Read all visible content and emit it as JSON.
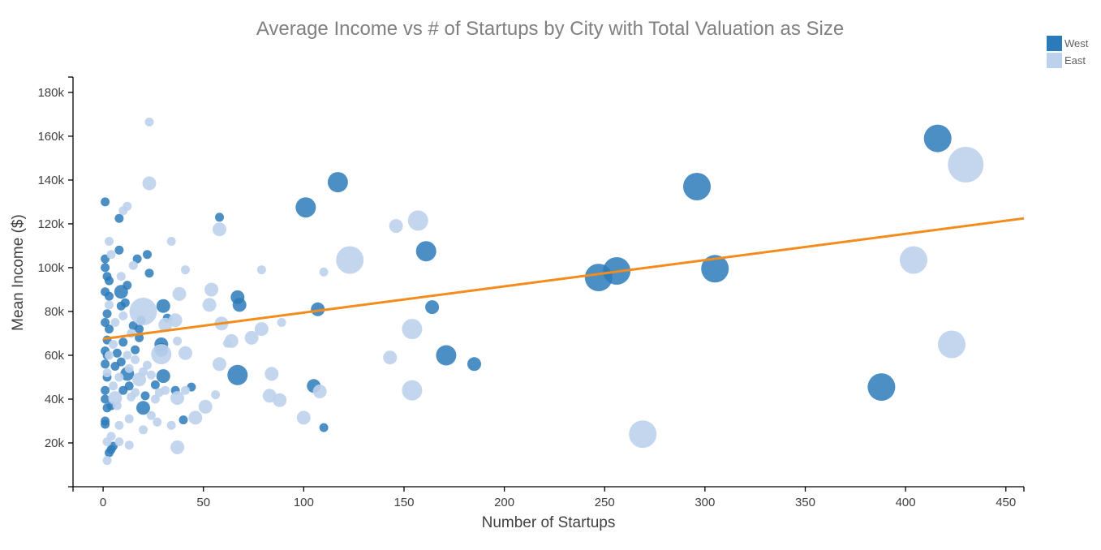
{
  "chart_data": {
    "type": "scatter",
    "title": "Average Income  vs # of Startups by City with Total Valuation as Size",
    "xlabel": "Number of Startups",
    "ylabel": "Mean Income ($)",
    "xlim": [
      -15,
      459
    ],
    "ylim": [
      0,
      187000
    ],
    "x_ticks": [
      0,
      50,
      100,
      150,
      200,
      250,
      300,
      350,
      400,
      450
    ],
    "y_ticks": [
      20000,
      40000,
      60000,
      80000,
      100000,
      120000,
      140000,
      160000,
      180000
    ],
    "y_tick_labels": [
      "20k",
      "40k",
      "60k",
      "80k",
      "100k",
      "120k",
      "140k",
      "160k",
      "180k"
    ],
    "grid": false,
    "legend_position": "top-right",
    "series": [
      {
        "name": "West",
        "color": "#2b7bba",
        "points": [
          [
            1,
            130000,
            "s"
          ],
          [
            1,
            104000,
            "s"
          ],
          [
            1,
            100000,
            "s"
          ],
          [
            2,
            96000,
            "s"
          ],
          [
            3,
            94000,
            "s"
          ],
          [
            1,
            89000,
            "s"
          ],
          [
            3,
            87000,
            "s"
          ],
          [
            2,
            79000,
            "s"
          ],
          [
            1,
            75000,
            "s"
          ],
          [
            3,
            72000,
            "s"
          ],
          [
            2,
            67000,
            "s"
          ],
          [
            1,
            62000,
            "s"
          ],
          [
            2,
            60000,
            "s"
          ],
          [
            1,
            56000,
            "s"
          ],
          [
            2,
            50000,
            "s"
          ],
          [
            1,
            44000,
            "s"
          ],
          [
            1,
            40000,
            "s"
          ],
          [
            2,
            36000,
            "s"
          ],
          [
            1,
            30000,
            "s"
          ],
          [
            1,
            28500,
            "s"
          ],
          [
            3,
            15500,
            "s"
          ],
          [
            4,
            17000,
            "s"
          ],
          [
            5,
            18500,
            "s"
          ],
          [
            4,
            37000,
            "s"
          ],
          [
            6,
            55000,
            "s"
          ],
          [
            7,
            61000,
            "s"
          ],
          [
            8,
            108000,
            "s"
          ],
          [
            8,
            122500,
            "s"
          ],
          [
            9,
            82500,
            "s"
          ],
          [
            9,
            57000,
            "s"
          ],
          [
            9,
            89000,
            "m"
          ],
          [
            10,
            66000,
            "s"
          ],
          [
            10,
            44000,
            "s"
          ],
          [
            11,
            84000,
            "s"
          ],
          [
            12,
            51500,
            "m"
          ],
          [
            12,
            92000,
            "s"
          ],
          [
            13,
            46000,
            "s"
          ],
          [
            15,
            73500,
            "s"
          ],
          [
            16,
            62500,
            "s"
          ],
          [
            17,
            104000,
            "s"
          ],
          [
            18,
            68000,
            "s"
          ],
          [
            18,
            72000,
            "s"
          ],
          [
            19,
            76000,
            "s"
          ],
          [
            20,
            36000,
            "m"
          ],
          [
            21,
            41500,
            "s"
          ],
          [
            22,
            106000,
            "s"
          ],
          [
            23,
            97500,
            "s"
          ],
          [
            26,
            46500,
            "s"
          ],
          [
            29,
            65000,
            "m"
          ],
          [
            29,
            62500,
            "m"
          ],
          [
            30,
            50500,
            "m"
          ],
          [
            30,
            82500,
            "m"
          ],
          [
            32,
            77000,
            "s"
          ],
          [
            36,
            44000,
            "s"
          ],
          [
            40,
            30500,
            "s"
          ],
          [
            44,
            45500,
            "s"
          ],
          [
            58,
            123000,
            "s"
          ],
          [
            67,
            86500,
            "m"
          ],
          [
            68,
            83000,
            "m"
          ],
          [
            67,
            51000,
            "l"
          ],
          [
            101,
            127500,
            "l"
          ],
          [
            105,
            46000,
            "m"
          ],
          [
            107,
            81000,
            "m"
          ],
          [
            110,
            27000,
            "s"
          ],
          [
            117,
            139000,
            "l"
          ],
          [
            161,
            107500,
            "l"
          ],
          [
            164,
            82000,
            "m"
          ],
          [
            171,
            60000,
            "l"
          ],
          [
            185,
            56000,
            "m"
          ],
          [
            247,
            95500,
            "x"
          ],
          [
            256,
            98500,
            "x"
          ],
          [
            296,
            137000,
            "x"
          ],
          [
            305,
            99500,
            "x"
          ],
          [
            388,
            45500,
            "x"
          ],
          [
            416,
            159000,
            "x"
          ]
        ]
      },
      {
        "name": "East",
        "color": "#bcd2ec",
        "points": [
          [
            23,
            166500,
            "s"
          ],
          [
            23,
            138500,
            "m"
          ],
          [
            12,
            128000,
            "s"
          ],
          [
            10,
            126000,
            "s"
          ],
          [
            3,
            112000,
            "s"
          ],
          [
            34,
            112000,
            "s"
          ],
          [
            4,
            106000,
            "s"
          ],
          [
            15,
            101000,
            "s"
          ],
          [
            9,
            96000,
            "s"
          ],
          [
            41,
            99000,
            "s"
          ],
          [
            79,
            99000,
            "s"
          ],
          [
            110,
            98000,
            "s"
          ],
          [
            58,
            117500,
            "m"
          ],
          [
            146,
            119000,
            "m"
          ],
          [
            157,
            121500,
            "l"
          ],
          [
            123,
            103500,
            "x"
          ],
          [
            20,
            80000,
            "x"
          ],
          [
            38,
            88000,
            "m"
          ],
          [
            54,
            90000,
            "m"
          ],
          [
            53,
            83000,
            "m"
          ],
          [
            59,
            74500,
            "m"
          ],
          [
            62,
            65500,
            "s"
          ],
          [
            64,
            66500,
            "m"
          ],
          [
            74,
            68000,
            "m"
          ],
          [
            79,
            72000,
            "m"
          ],
          [
            89,
            75000,
            "s"
          ],
          [
            31,
            74000,
            "m"
          ],
          [
            36,
            76000,
            "m"
          ],
          [
            37,
            66500,
            "s"
          ],
          [
            41,
            61000,
            "m"
          ],
          [
            29,
            60500,
            "l"
          ],
          [
            58,
            56000,
            "m"
          ],
          [
            2,
            52000,
            "s"
          ],
          [
            5,
            46000,
            "s"
          ],
          [
            6,
            40500,
            "m"
          ],
          [
            8,
            50000,
            "s"
          ],
          [
            13,
            54000,
            "s"
          ],
          [
            14,
            41000,
            "s"
          ],
          [
            16,
            43000,
            "s"
          ],
          [
            18,
            49000,
            "m"
          ],
          [
            20,
            52500,
            "s"
          ],
          [
            22,
            55500,
            "s"
          ],
          [
            24,
            51000,
            "s"
          ],
          [
            26,
            40000,
            "s"
          ],
          [
            28,
            43000,
            "s"
          ],
          [
            31,
            44000,
            "s"
          ],
          [
            37,
            40500,
            "m"
          ],
          [
            41,
            44000,
            "s"
          ],
          [
            51,
            36500,
            "m"
          ],
          [
            46,
            31500,
            "m"
          ],
          [
            34,
            28000,
            "s"
          ],
          [
            27,
            29500,
            "s"
          ],
          [
            24,
            32500,
            "s"
          ],
          [
            20,
            26000,
            "s"
          ],
          [
            13,
            31000,
            "s"
          ],
          [
            8,
            28000,
            "s"
          ],
          [
            4,
            23000,
            "s"
          ],
          [
            2,
            20500,
            "s"
          ],
          [
            8,
            20500,
            "s"
          ],
          [
            13,
            19000,
            "s"
          ],
          [
            2,
            12000,
            "s"
          ],
          [
            37,
            18000,
            "m"
          ],
          [
            56,
            42000,
            "s"
          ],
          [
            83,
            41500,
            "m"
          ],
          [
            84,
            51500,
            "m"
          ],
          [
            88,
            39500,
            "m"
          ],
          [
            100,
            31500,
            "m"
          ],
          [
            108,
            43500,
            "m"
          ],
          [
            143,
            59000,
            "m"
          ],
          [
            154,
            72000,
            "l"
          ],
          [
            154,
            44000,
            "l"
          ],
          [
            269,
            24000,
            "x"
          ],
          [
            404,
            103500,
            "x"
          ],
          [
            423,
            65000,
            "x"
          ],
          [
            430,
            147000,
            "xx"
          ],
          [
            3,
            60000,
            "s"
          ],
          [
            6,
            75000,
            "s"
          ],
          [
            10,
            78000,
            "s"
          ],
          [
            14,
            70000,
            "s"
          ],
          [
            5,
            65000,
            "s"
          ],
          [
            3,
            83000,
            "s"
          ],
          [
            7,
            37000,
            "s"
          ],
          [
            12,
            60000,
            "s"
          ],
          [
            16,
            58000,
            "s"
          ]
        ]
      }
    ],
    "trend_line": {
      "color": "#f28c1c",
      "x": [
        0,
        459
      ],
      "y": [
        67500,
        122500
      ]
    }
  }
}
